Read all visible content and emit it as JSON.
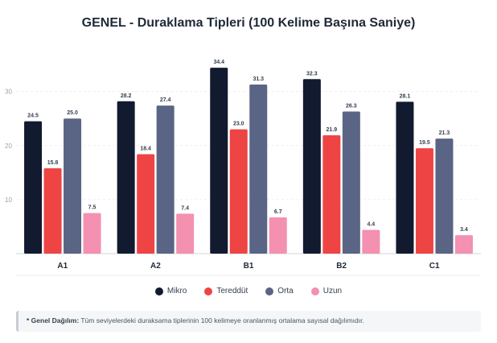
{
  "chart_data": {
    "type": "bar",
    "title": "GENEL - Duraklama Tipleri (100 Kelime Başına Saniye)",
    "categories": [
      "A1",
      "A2",
      "B1",
      "B2",
      "C1"
    ],
    "series": [
      {
        "name": "Mikro",
        "color": "#111a2e",
        "values": [
          24.5,
          28.2,
          34.4,
          32.3,
          28.1
        ]
      },
      {
        "name": "Tereddüt",
        "color": "#ef4444",
        "values": [
          15.8,
          18.4,
          23.0,
          21.9,
          19.5
        ]
      },
      {
        "name": "Orta",
        "color": "#5a6585",
        "values": [
          25.0,
          27.4,
          31.3,
          26.3,
          21.3
        ]
      },
      {
        "name": "Uzun",
        "color": "#f490b0",
        "values": [
          7.5,
          7.4,
          6.7,
          4.4,
          3.4
        ]
      }
    ],
    "y_ticks": [
      "10",
      "20",
      "30"
    ],
    "ylim": [
      0,
      38
    ],
    "grid": true,
    "legend_position": "bottom"
  },
  "note": {
    "label": "* Genel Dağılım:",
    "text": "Tüm seviyelerdeki duraksama tiplerinin 100 kelimeye oranlanmış ortalama sayısal dağılımıdır."
  }
}
